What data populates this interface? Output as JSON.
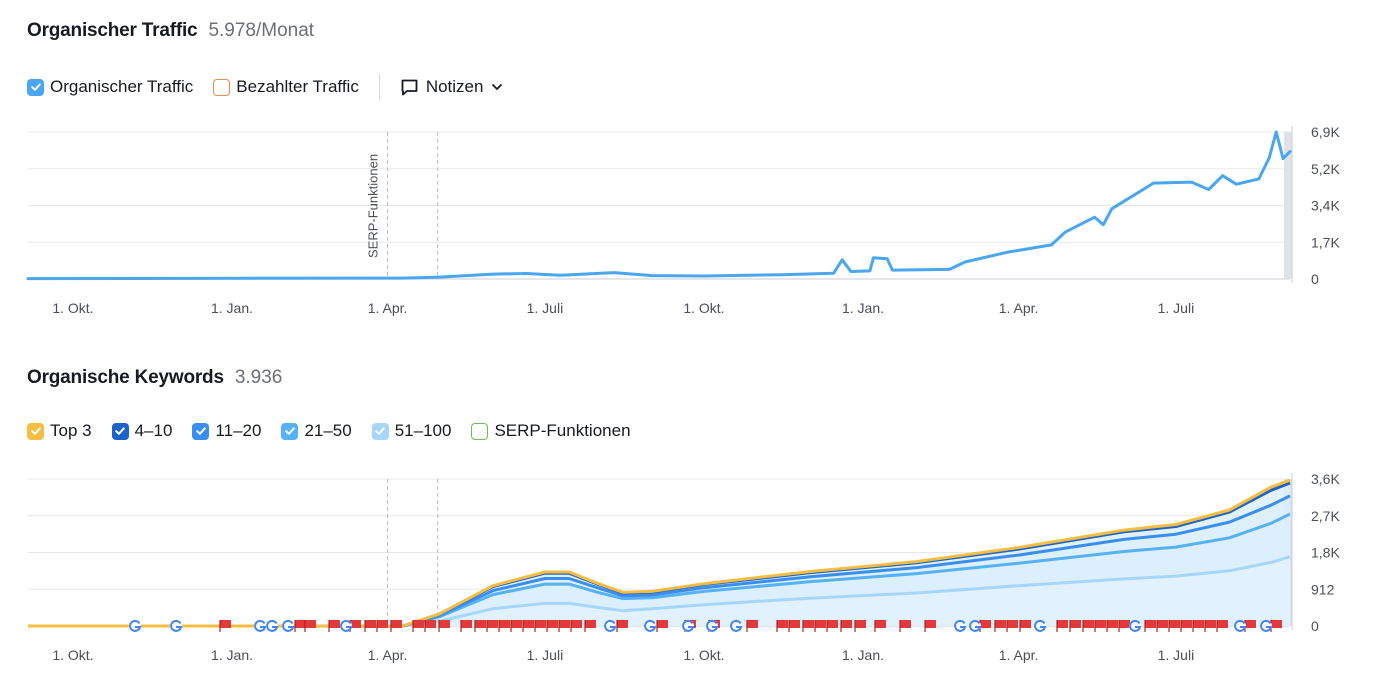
{
  "traffic": {
    "title": "Organischer Traffic",
    "metric": "5.978/Monat",
    "legend": [
      {
        "label": "Organischer Traffic",
        "checked": true,
        "color": "#4aa6ef"
      },
      {
        "label": "Bezahlter Traffic",
        "checked": false,
        "color": "#ef8a4c"
      }
    ],
    "notes_label": "Notizen"
  },
  "keywords": {
    "title": "Organische Keywords",
    "metric": "3.936",
    "legend": [
      {
        "label": "Top 3",
        "checked": true,
        "color": "#f5bd41"
      },
      {
        "label": "4–10",
        "checked": true,
        "color": "#1e63c8"
      },
      {
        "label": "11–20",
        "checked": true,
        "color": "#3a8ef0"
      },
      {
        "label": "21–50",
        "checked": true,
        "color": "#56b2f4"
      },
      {
        "label": "51–100",
        "checked": true,
        "color": "#a6d7fa"
      },
      {
        "label": "SERP-Funktionen",
        "checked": false,
        "color": "#6cc04a"
      }
    ]
  },
  "chart_data": [
    {
      "type": "line",
      "title": "Organischer Traffic",
      "x_tick_labels": [
        "1. Okt.",
        "1. Jan.",
        "1. Apr.",
        "1. Juli",
        "1. Okt.",
        "1. Jan.",
        "1. Apr.",
        "1. Juli"
      ],
      "y_tick_labels": [
        "0",
        "1,7K",
        "3,4K",
        "5,2K",
        "6,9K"
      ],
      "ylim": [
        0,
        6900
      ],
      "xlim": [
        "2021-09-05",
        "2023-09-05"
      ],
      "annotation_label": "SERP-Funktionen",
      "grid": true,
      "series": [
        {
          "name": "Organischer Traffic",
          "color": "#4aa6ef",
          "points": [
            [
              "2021-09-05",
              20
            ],
            [
              "2022-04-10",
              40
            ],
            [
              "2022-05-01",
              90
            ],
            [
              "2022-06-01",
              230
            ],
            [
              "2022-06-20",
              260
            ],
            [
              "2022-07-10",
              180
            ],
            [
              "2022-08-10",
              300
            ],
            [
              "2022-09-01",
              160
            ],
            [
              "2022-10-01",
              140
            ],
            [
              "2022-11-15",
              200
            ],
            [
              "2022-12-15",
              270
            ],
            [
              "2022-12-20",
              900
            ],
            [
              "2022-12-25",
              350
            ],
            [
              "2023-01-05",
              380
            ],
            [
              "2023-01-07",
              1000
            ],
            [
              "2023-01-15",
              950
            ],
            [
              "2023-01-18",
              420
            ],
            [
              "2023-02-20",
              450
            ],
            [
              "2023-03-01",
              800
            ],
            [
              "2023-03-25",
              1250
            ],
            [
              "2023-04-20",
              1600
            ],
            [
              "2023-04-28",
              2200
            ],
            [
              "2023-05-15",
              2900
            ],
            [
              "2023-05-20",
              2550
            ],
            [
              "2023-05-25",
              3300
            ],
            [
              "2023-06-10",
              4100
            ],
            [
              "2023-06-18",
              4500
            ],
            [
              "2023-07-10",
              4550
            ],
            [
              "2023-07-20",
              4200
            ],
            [
              "2023-07-28",
              4850
            ],
            [
              "2023-08-05",
              4450
            ],
            [
              "2023-08-18",
              4700
            ],
            [
              "2023-08-24",
              5700
            ],
            [
              "2023-08-28",
              6900
            ],
            [
              "2023-09-01",
              5650
            ],
            [
              "2023-09-05",
              5978
            ]
          ]
        }
      ]
    },
    {
      "type": "area",
      "title": "Organische Keywords",
      "x_tick_labels": [
        "1. Okt.",
        "1. Jan.",
        "1. Apr.",
        "1. Juli",
        "1. Okt.",
        "1. Jan.",
        "1. Apr.",
        "1. Juli"
      ],
      "y_tick_labels": [
        "0",
        "912",
        "1,8K",
        "2,7K",
        "3,6K"
      ],
      "ylim": [
        0,
        3650
      ],
      "xlim": [
        "2021-09-05",
        "2023-09-05"
      ],
      "grid": true,
      "dates": [
        "2021-09-05",
        "2022-04-10",
        "2022-05-01",
        "2022-06-01",
        "2022-07-01",
        "2022-07-15",
        "2022-08-01",
        "2022-08-15",
        "2022-09-01",
        "2022-10-01",
        "2022-12-01",
        "2023-02-01",
        "2023-04-01",
        "2023-06-01",
        "2023-07-01",
        "2023-08-01",
        "2023-08-25",
        "2023-09-05"
      ],
      "series": [
        {
          "name": "Top 3",
          "color": "#f5bd41",
          "values": [
            0,
            0,
            300,
            1000,
            1340,
            1340,
            1050,
            840,
            860,
            1050,
            1350,
            1600,
            1950,
            2380,
            2520,
            2880,
            3450,
            3620
          ]
        },
        {
          "name": "4–10",
          "color": "#1e63c8",
          "values": [
            0,
            0,
            295,
            980,
            1310,
            1310,
            1030,
            820,
            840,
            1030,
            1320,
            1570,
            1910,
            2340,
            2470,
            2830,
            3370,
            3550
          ]
        },
        {
          "name": "11–20",
          "color": "#3a8ef0",
          "values": [
            0,
            0,
            260,
            880,
            1180,
            1180,
            940,
            750,
            770,
            950,
            1220,
            1450,
            1760,
            2150,
            2280,
            2580,
            3000,
            3230
          ]
        },
        {
          "name": "21–50",
          "color": "#56b2f4",
          "values": [
            0,
            0,
            230,
            780,
            1040,
            1040,
            830,
            680,
            700,
            860,
            1100,
            1300,
            1560,
            1850,
            1960,
            2190,
            2550,
            2780
          ]
        },
        {
          "name": "51–100",
          "color": "#a6d7fa",
          "values": [
            0,
            0,
            120,
            430,
            560,
            560,
            460,
            380,
            430,
            530,
            690,
            820,
            1000,
            1170,
            1240,
            1370,
            1580,
            1720
          ]
        }
      ]
    }
  ]
}
